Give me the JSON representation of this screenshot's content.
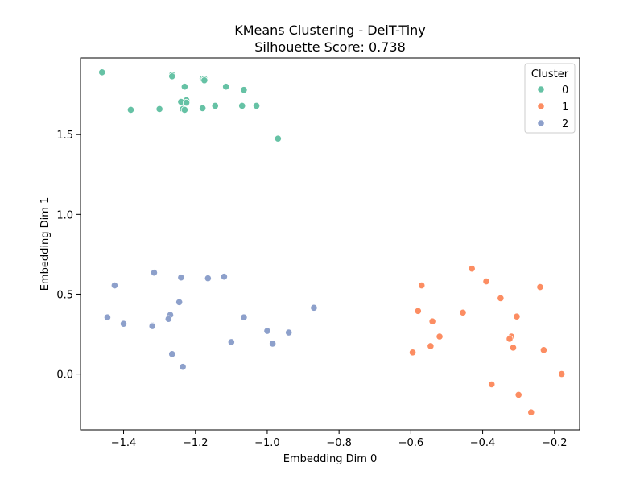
{
  "chart_data": {
    "type": "scatter",
    "title": "KMeans Clustering - DeiT-Tiny",
    "subtitle": "Silhouette Score: 0.738",
    "xlabel": "Embedding Dim 0",
    "ylabel": "Embedding Dim 1",
    "xlim": [
      -1.52,
      -0.13
    ],
    "ylim": [
      -0.35,
      1.98
    ],
    "xticks": [
      {
        "value": -1.4,
        "label": "−1.4"
      },
      {
        "value": -1.2,
        "label": "−1.2"
      },
      {
        "value": -1.0,
        "label": "−1.0"
      },
      {
        "value": -0.8,
        "label": "−0.8"
      },
      {
        "value": -0.6,
        "label": "−0.6"
      },
      {
        "value": -0.4,
        "label": "−0.4"
      },
      {
        "value": -0.2,
        "label": "−0.2"
      }
    ],
    "yticks": [
      {
        "value": 0.0,
        "label": "0.0"
      },
      {
        "value": 0.5,
        "label": "0.5"
      },
      {
        "value": 1.0,
        "label": "1.0"
      },
      {
        "value": 1.5,
        "label": "1.5"
      }
    ],
    "grid": false,
    "legend": {
      "title": "Cluster",
      "position": "top-right"
    },
    "series": [
      {
        "name": "0",
        "color": "#66c2a5",
        "points": [
          [
            -1.46,
            1.89
          ],
          [
            -1.265,
            1.875
          ],
          [
            -1.265,
            1.865
          ],
          [
            -1.18,
            1.85
          ],
          [
            -1.175,
            1.85
          ],
          [
            -1.175,
            1.84
          ],
          [
            -1.23,
            1.8
          ],
          [
            -1.115,
            1.8
          ],
          [
            -1.065,
            1.78
          ],
          [
            -1.225,
            1.715
          ],
          [
            -1.24,
            1.705
          ],
          [
            -1.225,
            1.7
          ],
          [
            -1.145,
            1.68
          ],
          [
            -1.07,
            1.68
          ],
          [
            -1.03,
            1.68
          ],
          [
            -1.38,
            1.655
          ],
          [
            -1.3,
            1.66
          ],
          [
            -1.235,
            1.66
          ],
          [
            -1.23,
            1.655
          ],
          [
            -1.18,
            1.665
          ],
          [
            -0.97,
            1.475
          ]
        ]
      },
      {
        "name": "1",
        "color": "#fc8d62",
        "points": [
          [
            -0.43,
            0.66
          ],
          [
            -0.39,
            0.58
          ],
          [
            -0.57,
            0.555
          ],
          [
            -0.24,
            0.545
          ],
          [
            -0.35,
            0.475
          ],
          [
            -0.58,
            0.395
          ],
          [
            -0.455,
            0.385
          ],
          [
            -0.305,
            0.36
          ],
          [
            -0.54,
            0.33
          ],
          [
            -0.52,
            0.235
          ],
          [
            -0.32,
            0.235
          ],
          [
            -0.325,
            0.22
          ],
          [
            -0.545,
            0.175
          ],
          [
            -0.315,
            0.165
          ],
          [
            -0.23,
            0.15
          ],
          [
            -0.595,
            0.135
          ],
          [
            -0.18,
            0.0
          ],
          [
            -0.375,
            -0.065
          ],
          [
            -0.3,
            -0.13
          ],
          [
            -0.265,
            -0.24
          ]
        ]
      },
      {
        "name": "2",
        "color": "#8da0cb",
        "points": [
          [
            -1.315,
            0.635
          ],
          [
            -1.12,
            0.61
          ],
          [
            -1.24,
            0.605
          ],
          [
            -1.165,
            0.6
          ],
          [
            -1.425,
            0.555
          ],
          [
            -1.245,
            0.45
          ],
          [
            -0.87,
            0.415
          ],
          [
            -1.27,
            0.37
          ],
          [
            -1.445,
            0.355
          ],
          [
            -1.065,
            0.355
          ],
          [
            -1.275,
            0.345
          ],
          [
            -1.4,
            0.315
          ],
          [
            -1.32,
            0.305
          ],
          [
            -1.32,
            0.3
          ],
          [
            -1.0,
            0.27
          ],
          [
            -0.94,
            0.26
          ],
          [
            -1.1,
            0.2
          ],
          [
            -0.985,
            0.19
          ],
          [
            -1.265,
            0.125
          ],
          [
            -1.235,
            0.045
          ]
        ]
      }
    ]
  }
}
